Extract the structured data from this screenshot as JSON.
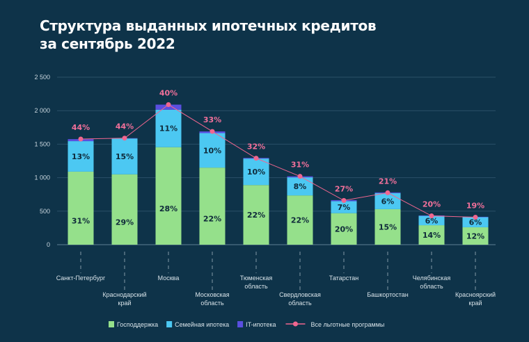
{
  "title_line1": "Структура выданных ипотечных кредитов",
  "title_line2": "за сентябрь 2022",
  "chart_data": {
    "type": "bar",
    "stacked": true,
    "title": "Структура выданных ипотечных кредитов за сентябрь 2022",
    "ylim": [
      0,
      2500
    ],
    "yticks": [
      "0",
      "500",
      "1 000",
      "1 500",
      "2 000",
      "2 500"
    ],
    "ytick_values": [
      0,
      500,
      1000,
      1500,
      2000,
      2500
    ],
    "grid": true,
    "legend_position": "bottom",
    "categories": [
      [
        "Санкт-Петербург"
      ],
      [
        "Краснодарский",
        "край"
      ],
      [
        "Москва"
      ],
      [
        "Московская",
        "область"
      ],
      [
        "Тюменская",
        "область"
      ],
      [
        "Свердловская",
        "область"
      ],
      [
        "Татарстан"
      ],
      [
        "Башкортостан"
      ],
      [
        "Челябинская",
        "область"
      ],
      [
        "Красноярский",
        "край"
      ]
    ],
    "series": [
      {
        "name": "Господдержка",
        "color": "#95e08b",
        "values": [
          1090,
          1050,
          1455,
          1150,
          890,
          735,
          470,
          530,
          290,
          260
        ],
        "labels": [
          "31%",
          "29%",
          "28%",
          "22%",
          "22%",
          "22%",
          "20%",
          "15%",
          "14%",
          "12%"
        ]
      },
      {
        "name": "Семейная ипотека",
        "color": "#4cc8f2",
        "values": [
          455,
          535,
          560,
          515,
          395,
          270,
          180,
          240,
          140,
          150
        ],
        "labels": [
          "13%",
          "15%",
          "11%",
          "10%",
          "10%",
          "8%",
          "7%",
          "6%",
          "6%",
          "6%"
        ]
      },
      {
        "name": "IT-ипотека",
        "color": "#5a4fe0",
        "values": [
          30,
          5,
          75,
          25,
          10,
          15,
          15,
          10,
          6,
          6
        ]
      }
    ],
    "line": {
      "name": "Все льготные программы",
      "color": "#f0668f",
      "values": [
        1577,
        1590,
        2090,
        1690,
        1290,
        1020,
        660,
        775,
        430,
        410
      ],
      "labels": [
        "44%",
        "44%",
        "40%",
        "33%",
        "32%",
        "31%",
        "27%",
        "21%",
        "20%",
        "19%"
      ]
    }
  }
}
